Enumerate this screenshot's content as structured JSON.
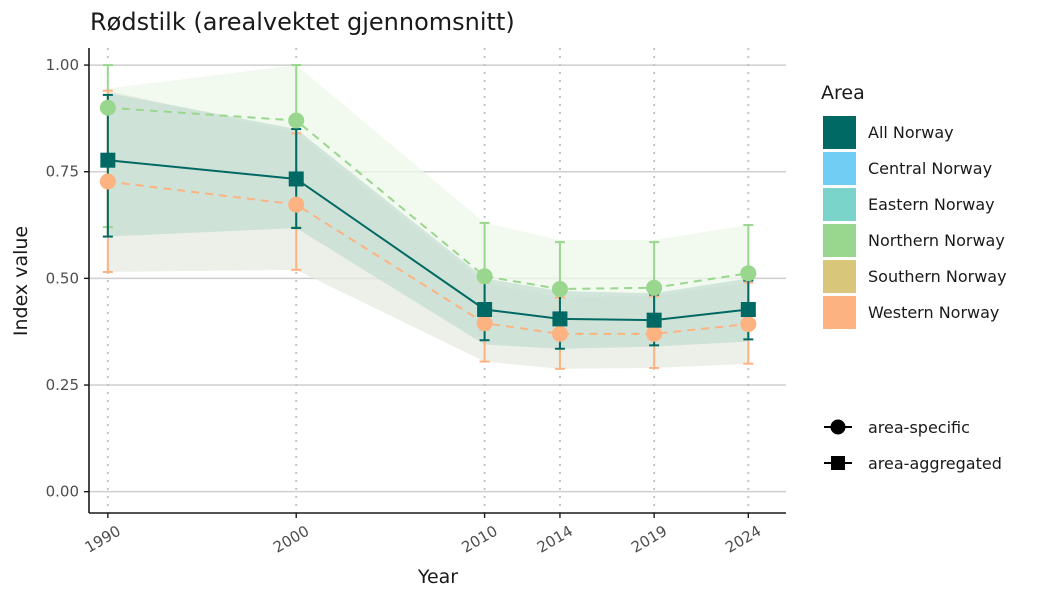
{
  "chart_data": {
    "type": "line",
    "title": "Rødstilk (arealvektet gjennomsnitt)",
    "xlabel": "Year",
    "ylabel": "Index value",
    "x": [
      1990,
      2000,
      2010,
      2014,
      2019,
      2024
    ],
    "x_tick_labels": [
      "1990",
      "2000",
      "2010",
      "2014",
      "2019",
      "2024"
    ],
    "xlim": [
      1989,
      2026
    ],
    "ylim": [
      -0.05,
      1.04
    ],
    "y_ticks": [
      0.0,
      0.25,
      0.5,
      0.75,
      1.0
    ],
    "y_tick_labels": [
      "0.00",
      "0.25",
      "0.50",
      "0.75",
      "1.00"
    ],
    "grid": "horizontal major lines; vertical dotted lines at data years",
    "legend": {
      "title": "Area",
      "placement": "right",
      "areas": [
        {
          "name": "All Norway",
          "color": "#006964"
        },
        {
          "name": "Central Norway",
          "color": "#72cdf4"
        },
        {
          "name": "Eastern Norway",
          "color": "#7bd4c9"
        },
        {
          "name": "Northern Norway",
          "color": "#99d78f"
        },
        {
          "name": "Southern Norway",
          "color": "#d8c67a"
        },
        {
          "name": "Western Norway",
          "color": "#fdb281"
        }
      ],
      "shapes": [
        {
          "name": "area-specific",
          "marker": "circle"
        },
        {
          "name": "area-aggregated",
          "marker": "square"
        }
      ]
    },
    "series": [
      {
        "name": "Northern Norway",
        "marker": "circle",
        "line": "dashed",
        "color": "#99d78f",
        "values": [
          0.9,
          0.87,
          0.505,
          0.475,
          0.478,
          0.512
        ],
        "lower": [
          0.62,
          0.62,
          0.38,
          0.36,
          0.37,
          0.4
        ],
        "upper": [
          1.0,
          1.0,
          0.63,
          0.585,
          0.585,
          0.625
        ],
        "band_lower": [
          0.6,
          0.62,
          0.38,
          0.36,
          0.37,
          0.4
        ],
        "band_upper": [
          0.945,
          1.0,
          0.63,
          0.59,
          0.59,
          0.625
        ],
        "band_color": "#eef7ea"
      },
      {
        "name": "Western Norway",
        "marker": "circle",
        "line": "dashed",
        "color": "#fdb281",
        "values": [
          0.727,
          0.673,
          0.395,
          0.37,
          0.37,
          0.393
        ],
        "lower": [
          0.515,
          0.52,
          0.305,
          0.288,
          0.29,
          0.3
        ],
        "upper": [
          0.94,
          0.84,
          0.49,
          0.455,
          0.458,
          0.49
        ],
        "band_lower": [
          0.515,
          0.52,
          0.305,
          0.288,
          0.29,
          0.3
        ],
        "band_upper": [
          0.94,
          0.84,
          0.49,
          0.455,
          0.458,
          0.49
        ],
        "band_color": "#e6ebe0"
      },
      {
        "name": "All Norway",
        "marker": "square",
        "line": "solid",
        "color": "#006964",
        "values": [
          0.777,
          0.733,
          0.427,
          0.405,
          0.402,
          0.427
        ],
        "lower": [
          0.598,
          0.618,
          0.355,
          0.335,
          0.343,
          0.357
        ],
        "upper": [
          0.93,
          0.85,
          0.495,
          0.465,
          0.462,
          0.495
        ],
        "band_lower": [
          0.598,
          0.618,
          0.345,
          0.335,
          0.34,
          0.352
        ],
        "band_upper": [
          0.935,
          0.85,
          0.5,
          0.47,
          0.465,
          0.5
        ],
        "band_color": "#c5ddd3"
      }
    ]
  }
}
